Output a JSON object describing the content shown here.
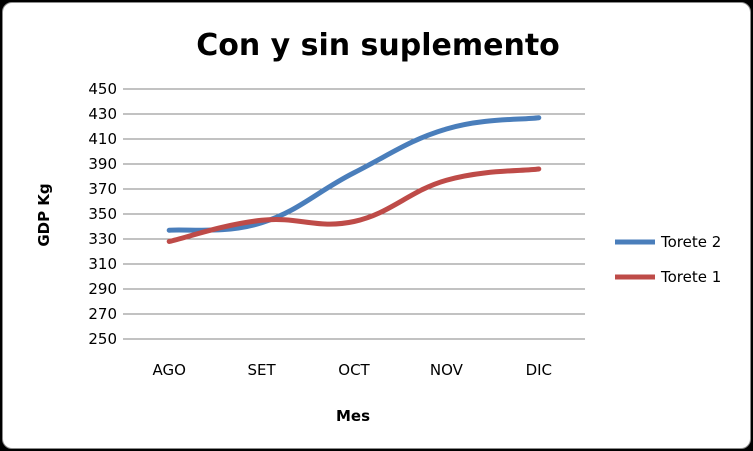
{
  "chart_data": {
    "type": "line",
    "title": "Con y sin suplemento",
    "xlabel": "Mes",
    "ylabel": "GDP Kg",
    "categories": [
      "AGO",
      "SET",
      "OCT",
      "NOV",
      "DIC"
    ],
    "ylim": [
      250,
      450
    ],
    "yticks": [
      250,
      270,
      290,
      310,
      330,
      350,
      370,
      390,
      410,
      430,
      450
    ],
    "grid": true,
    "legend": "right",
    "series": [
      {
        "name": "Torete 2",
        "color": "#4a7ebb",
        "values": [
          337,
          343,
          383,
          418,
          427
        ]
      },
      {
        "name": "Torete 1",
        "color": "#be4b48",
        "values": [
          328,
          345,
          344,
          377,
          386
        ]
      }
    ]
  }
}
